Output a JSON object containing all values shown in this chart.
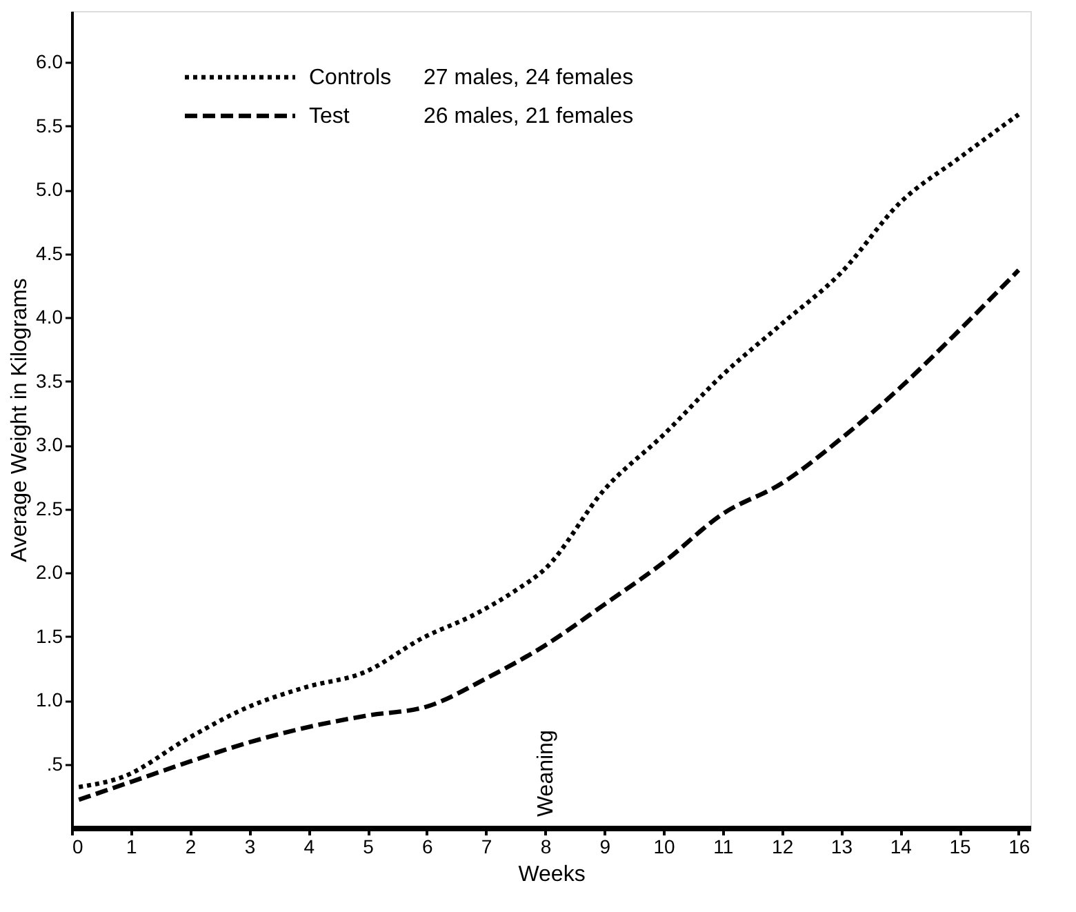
{
  "chart_data": {
    "type": "line",
    "xlabel": "Weeks",
    "ylabel": "Average Weight in Kilograms",
    "xlim": [
      0,
      16.2
    ],
    "ylim": [
      0,
      6.4
    ],
    "xticks": [
      0,
      1,
      2,
      3,
      4,
      5,
      6,
      7,
      8,
      9,
      10,
      11,
      12,
      13,
      14,
      15,
      16
    ],
    "yticks": [
      {
        "value": 0.5,
        "label": ".5"
      },
      {
        "value": 1.0,
        "label": "1.0"
      },
      {
        "value": 1.5,
        "label": "1.5"
      },
      {
        "value": 2.0,
        "label": "2.0"
      },
      {
        "value": 2.5,
        "label": "2.5"
      },
      {
        "value": 3.0,
        "label": "3.0"
      },
      {
        "value": 3.5,
        "label": "3.5"
      },
      {
        "value": 4.0,
        "label": "4.0"
      },
      {
        "value": 4.5,
        "label": "4.5"
      },
      {
        "value": 5.0,
        "label": "5.0"
      },
      {
        "value": 5.5,
        "label": "5.5"
      },
      {
        "value": 6.0,
        "label": "6.0"
      }
    ],
    "grid": false,
    "legend": "top left",
    "marker": "none",
    "series": [
      {
        "name": "Controls",
        "color": "#000000",
        "line_style": "dotted",
        "x": [
          0.12,
          0.87,
          1.96,
          2.95,
          3.94,
          4.95,
          5.94,
          6.8,
          7.5,
          8,
          9,
          10,
          11,
          12,
          13,
          14,
          15,
          16
        ],
        "values": [
          0.32,
          0.4,
          0.7,
          0.94,
          1.1,
          1.22,
          1.49,
          1.67,
          1.86,
          2.03,
          2.65,
          3.08,
          3.55,
          3.95,
          4.35,
          4.9,
          5.25,
          5.59
        ]
      },
      {
        "name": "Test",
        "color": "#000000",
        "line_style": "dashed",
        "x": [
          0.12,
          1,
          2,
          3,
          4,
          5,
          6,
          7,
          8,
          9,
          10,
          11,
          12,
          13,
          14,
          15,
          16
        ],
        "values": [
          0.22,
          0.36,
          0.52,
          0.67,
          0.79,
          0.88,
          0.95,
          1.17,
          1.43,
          1.75,
          2.08,
          2.46,
          2.7,
          3.05,
          3.45,
          3.9,
          4.37
        ]
      }
    ],
    "annotations": [
      "27 males, 24 females",
      "26 males, 21 females",
      "Weaning"
    ]
  }
}
